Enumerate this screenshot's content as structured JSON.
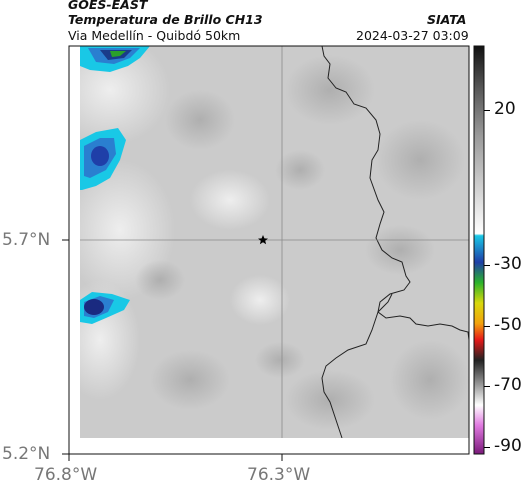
{
  "header": {
    "satellite": "GOES-EAST",
    "product": "Temperatura de Brillo CH13",
    "route": "Via Medellín - Quibdó 50km",
    "source": "SIATA",
    "timestamp": "2024-03-27 03:09"
  },
  "map": {
    "lat_labels": [
      "5.7°N",
      "5.2°N"
    ],
    "lon_labels": [
      "76.8°W",
      "76.3°W"
    ],
    "marker": "star-marker"
  },
  "colorbar": {
    "tick_labels": [
      "20",
      "-30",
      "-50",
      "-70",
      "-90"
    ],
    "colors": {
      "black_top": "#1a1a1a",
      "cyan": "#19c8e6",
      "blue": "#1f3fa8",
      "green": "#2bb32b",
      "yellow": "#f2f20d",
      "red": "#e61919",
      "magenta": "#c84fc8"
    }
  }
}
